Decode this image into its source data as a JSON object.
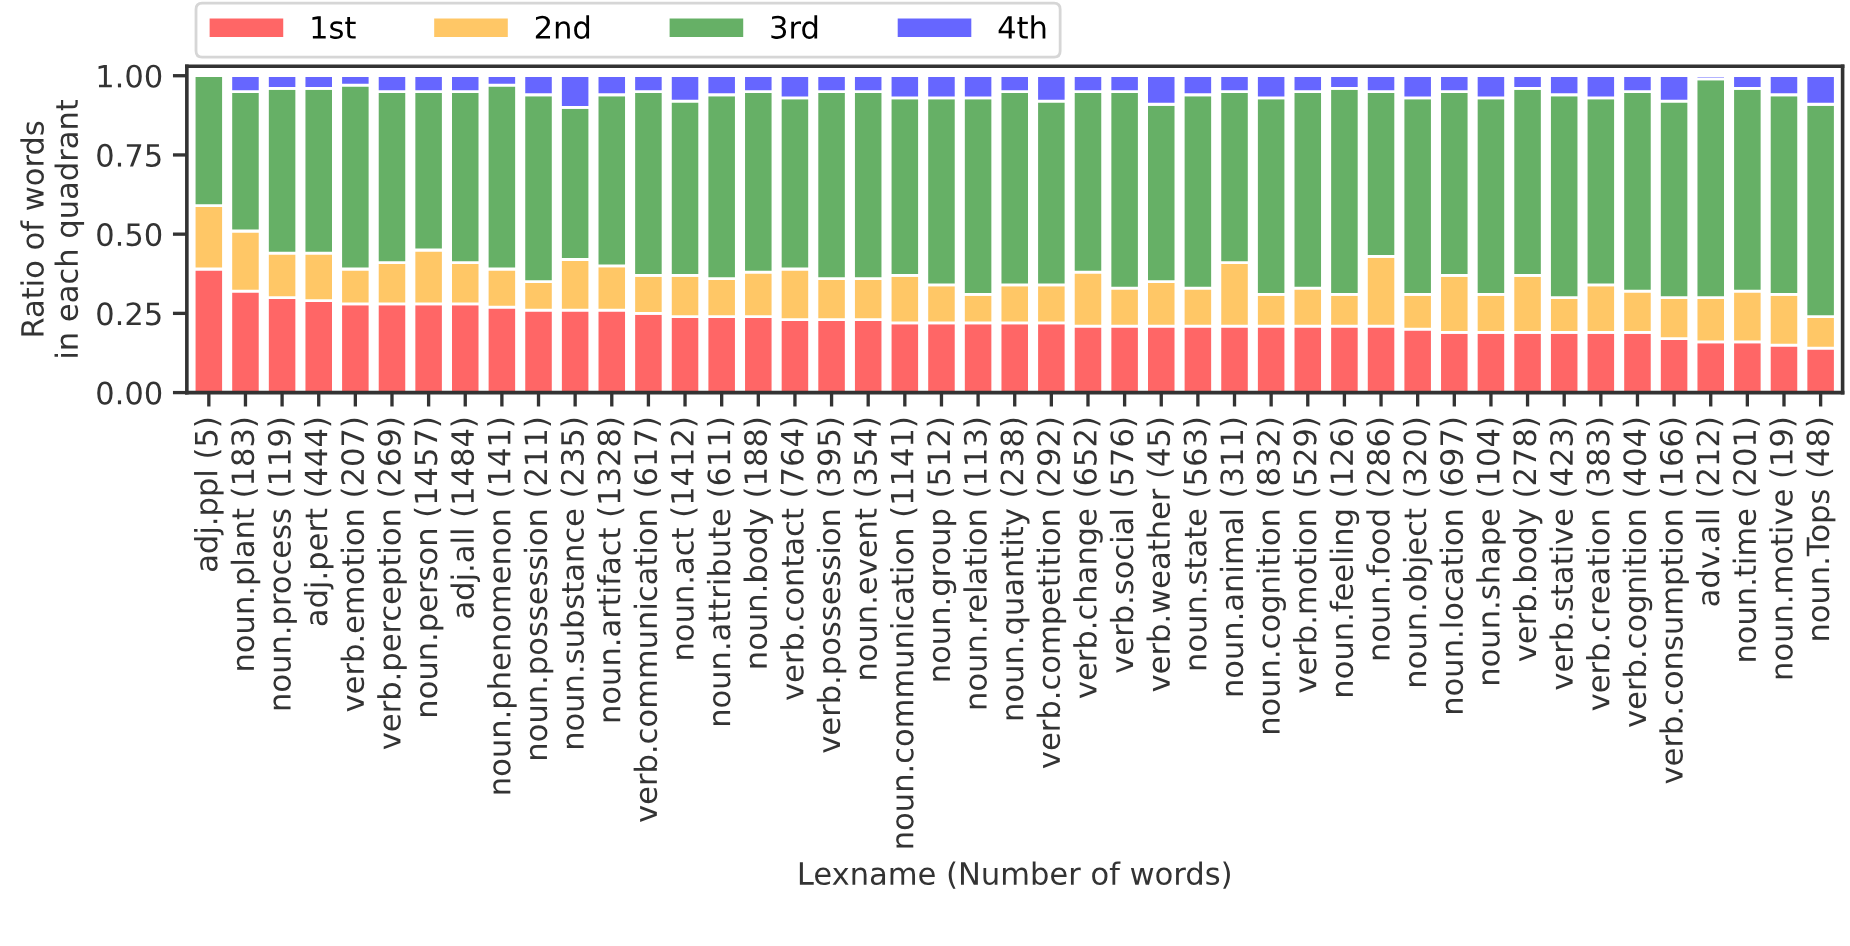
{
  "chart_data": {
    "type": "bar",
    "stacked": true,
    "xlabel": "Lexname (Number of words)",
    "ylabel": "Ratio of words\nin each quadrant",
    "categories": [
      "adj.ppl (5)",
      "noun.plant (183)",
      "noun.process (119)",
      "adj.pert (444)",
      "verb.emotion (207)",
      "verb.perception (269)",
      "noun.person (1457)",
      "adj.all (1484)",
      "noun.phenomenon (141)",
      "noun.possession (211)",
      "noun.substance (235)",
      "noun.artifact (1328)",
      "verb.communication (617)",
      "noun.act (1412)",
      "noun.attribute (611)",
      "noun.body (188)",
      "verb.contact (764)",
      "verb.possession (395)",
      "noun.event (354)",
      "noun.communication (1141)",
      "noun.group (512)",
      "noun.relation (113)",
      "noun.quantity (238)",
      "verb.competition (292)",
      "verb.change (652)",
      "verb.social (576)",
      "verb.weather (45)",
      "noun.state (563)",
      "noun.animal (311)",
      "noun.cognition (832)",
      "verb.motion (529)",
      "noun.feeling (126)",
      "noun.food (286)",
      "noun.object (320)",
      "noun.location (697)",
      "noun.shape (104)",
      "verb.body (278)",
      "verb.stative (423)",
      "verb.creation (383)",
      "verb.cognition (404)",
      "verb.consumption (166)",
      "adv.all (212)",
      "noun.time (201)",
      "noun.motive (19)",
      "noun.Tops (48)"
    ],
    "series": [
      {
        "name": "1st",
        "color": "#ff6666",
        "values": [
          0.39,
          0.32,
          0.3,
          0.29,
          0.28,
          0.28,
          0.28,
          0.28,
          0.27,
          0.26,
          0.26,
          0.26,
          0.25,
          0.24,
          0.24,
          0.24,
          0.23,
          0.23,
          0.23,
          0.22,
          0.22,
          0.22,
          0.22,
          0.22,
          0.21,
          0.21,
          0.21,
          0.21,
          0.21,
          0.21,
          0.21,
          0.21,
          0.21,
          0.2,
          0.19,
          0.19,
          0.19,
          0.19,
          0.19,
          0.19,
          0.17,
          0.16,
          0.16,
          0.15,
          0.14
        ]
      },
      {
        "name": "2nd",
        "color": "#ffc766",
        "values": [
          0.2,
          0.19,
          0.14,
          0.15,
          0.11,
          0.13,
          0.17,
          0.13,
          0.12,
          0.09,
          0.16,
          0.14,
          0.12,
          0.13,
          0.12,
          0.14,
          0.16,
          0.13,
          0.13,
          0.15,
          0.12,
          0.09,
          0.12,
          0.12,
          0.17,
          0.12,
          0.14,
          0.12,
          0.2,
          0.1,
          0.12,
          0.1,
          0.22,
          0.11,
          0.18,
          0.12,
          0.18,
          0.11,
          0.15,
          0.13,
          0.13,
          0.14,
          0.16,
          0.16,
          0.1
        ]
      },
      {
        "name": "3rd",
        "color": "#66b066",
        "values": [
          0.41,
          0.44,
          0.52,
          0.52,
          0.58,
          0.54,
          0.5,
          0.54,
          0.58,
          0.59,
          0.48,
          0.54,
          0.58,
          0.55,
          0.58,
          0.57,
          0.54,
          0.59,
          0.59,
          0.56,
          0.59,
          0.62,
          0.61,
          0.58,
          0.57,
          0.62,
          0.56,
          0.61,
          0.54,
          0.62,
          0.62,
          0.65,
          0.52,
          0.62,
          0.58,
          0.62,
          0.59,
          0.64,
          0.59,
          0.63,
          0.62,
          0.69,
          0.64,
          0.63,
          0.67
        ]
      },
      {
        "name": "4th",
        "color": "#6666ff",
        "values": [
          null,
          0.05,
          0.04,
          0.04,
          0.03,
          0.05,
          0.05,
          0.05,
          0.03,
          0.06,
          0.1,
          0.06,
          0.05,
          0.08,
          0.06,
          0.05,
          0.07,
          0.05,
          0.05,
          0.07,
          0.07,
          0.07,
          0.05,
          0.08,
          0.05,
          0.05,
          0.09,
          0.06,
          0.05,
          0.07,
          0.05,
          0.04,
          0.05,
          0.07,
          0.05,
          0.07,
          0.04,
          0.06,
          0.07,
          0.05,
          0.08,
          0.01,
          0.04,
          0.06,
          0.09
        ]
      }
    ],
    "ylim": [
      0,
      1.03
    ],
    "yticks": [
      {
        "value": 0,
        "label": "0.00"
      },
      {
        "value": 0.25,
        "label": "0.25"
      },
      {
        "value": 0.5,
        "label": "0.50"
      },
      {
        "value": 0.75,
        "label": "0.75"
      },
      {
        "value": 1,
        "label": "1.00"
      }
    ],
    "legend": "top left"
  }
}
